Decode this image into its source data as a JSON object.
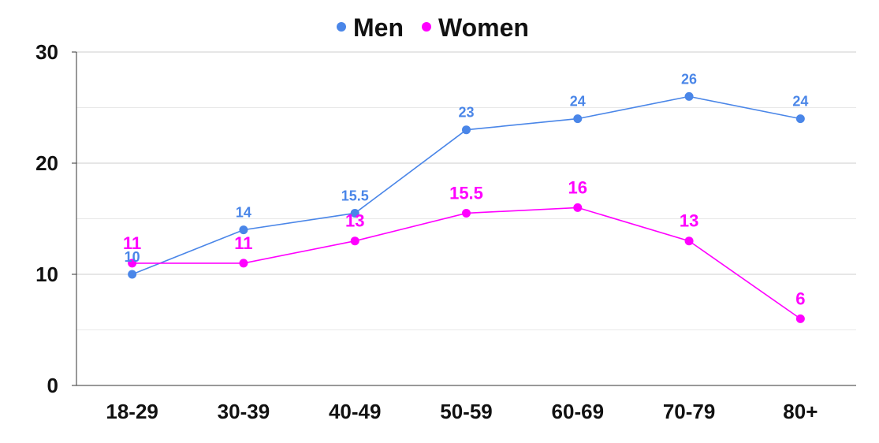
{
  "chart_data": {
    "type": "line",
    "categories": [
      "18-29",
      "30-39",
      "40-49",
      "50-59",
      "60-69",
      "70-79",
      "80+"
    ],
    "series": [
      {
        "name": "Men",
        "color": "#4A86E8",
        "values": [
          10,
          14,
          15.5,
          23,
          24,
          26,
          24
        ],
        "labels": [
          "10",
          "14",
          "15.5",
          "23",
          "24",
          "26",
          "24"
        ]
      },
      {
        "name": "Women",
        "color": "#FF00FF",
        "values": [
          11,
          11,
          13,
          15.5,
          16,
          13,
          6
        ],
        "labels": [
          "11",
          "11",
          "13",
          "15.5",
          "16",
          "13",
          "6"
        ]
      }
    ],
    "ylim": [
      0,
      30
    ],
    "yticks": [
      "0",
      "10",
      "20",
      "30"
    ],
    "grid": true,
    "legend_position": "top-center",
    "title": "",
    "xlabel": "",
    "ylabel": ""
  }
}
